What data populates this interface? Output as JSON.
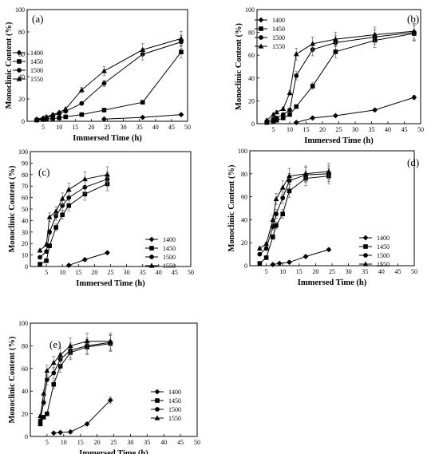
{
  "chart_data": [
    {
      "type": "line",
      "panel_label": "(a)",
      "xlabel": "Immersed Time (h)",
      "ylabel": "Monoclinic Content (%)",
      "xlim": [
        0,
        50
      ],
      "ylim": [
        0,
        100
      ],
      "xticks": [
        5,
        10,
        15,
        20,
        25,
        30,
        35,
        40,
        45,
        50
      ],
      "yticks": [
        0,
        20,
        40,
        60,
        80,
        100
      ],
      "legend_position": "center-left",
      "error_bars": true,
      "series": [
        {
          "name": "1400",
          "marker": "diamond",
          "x": [
            24,
            36,
            48
          ],
          "y": [
            2,
            3.5,
            6
          ]
        },
        {
          "name": "1450",
          "marker": "square",
          "x": [
            3,
            5,
            6,
            8,
            10,
            12,
            17,
            24,
            36,
            48
          ],
          "y": [
            1,
            1.5,
            2,
            2.5,
            3,
            4,
            6,
            10,
            17,
            62
          ]
        },
        {
          "name": "1500",
          "marker": "circle",
          "x": [
            3,
            5,
            6,
            8,
            10,
            12,
            17,
            24,
            36,
            48
          ],
          "y": [
            1.5,
            2,
            3,
            5,
            7,
            9,
            16,
            34,
            60,
            71
          ]
        },
        {
          "name": "1550",
          "marker": "triangle",
          "x": [
            3,
            5,
            6,
            8,
            10,
            12,
            17,
            24,
            36,
            48
          ],
          "y": [
            2,
            3,
            4,
            6,
            8,
            11,
            28,
            45,
            64,
            74
          ]
        }
      ]
    },
    {
      "type": "line",
      "panel_label": "(b)",
      "xlabel": "Immersed Time (h)",
      "ylabel": "Monoclinic Content (%)",
      "xlim": [
        0,
        50
      ],
      "ylim": [
        0,
        100
      ],
      "xticks": [
        5,
        10,
        15,
        20,
        25,
        30,
        35,
        40,
        45,
        50
      ],
      "yticks": [
        0,
        20,
        40,
        60,
        80,
        100
      ],
      "legend_position": "top-left",
      "error_bars": true,
      "series": [
        {
          "name": "1400",
          "marker": "diamond",
          "x": [
            12,
            17,
            24,
            36,
            48
          ],
          "y": [
            1,
            5,
            7,
            12,
            23
          ]
        },
        {
          "name": "1450",
          "marker": "square",
          "x": [
            3,
            5,
            6,
            8,
            10,
            12,
            17,
            24,
            36,
            48
          ],
          "y": [
            1,
            2,
            3,
            5,
            8,
            15,
            33,
            63,
            73,
            79
          ]
        },
        {
          "name": "1500",
          "marker": "circle",
          "x": [
            3,
            5,
            6,
            8,
            10,
            12,
            17,
            24,
            36,
            48
          ],
          "y": [
            2,
            4,
            5,
            8,
            12,
            42,
            65,
            71,
            76,
            80
          ]
        },
        {
          "name": "1550",
          "marker": "triangle",
          "x": [
            3,
            5,
            6,
            8,
            10,
            12,
            17,
            24,
            36,
            48
          ],
          "y": [
            3,
            8,
            10,
            13,
            27,
            61,
            70,
            74,
            78,
            81
          ]
        }
      ]
    },
    {
      "type": "line",
      "panel_label": "(c)",
      "xlabel": "Immersed Time (h)",
      "ylabel": "Monoclinic Content (%)",
      "xlim": [
        0,
        50
      ],
      "ylim": [
        0,
        100
      ],
      "xticks": [
        5,
        10,
        15,
        20,
        25,
        30,
        35,
        40,
        45,
        50
      ],
      "yticks": [
        0,
        10,
        20,
        30,
        40,
        50,
        60,
        70,
        80,
        90,
        100
      ],
      "legend_position": "bottom-right",
      "error_bars": true,
      "series": [
        {
          "name": "1400",
          "marker": "diamond",
          "x": [
            12,
            17,
            24
          ],
          "y": [
            1,
            6,
            12
          ]
        },
        {
          "name": "1450",
          "marker": "square",
          "x": [
            3,
            5,
            6,
            8,
            10,
            12,
            17,
            24
          ],
          "y": [
            2,
            5,
            18,
            34,
            45,
            53,
            63,
            72
          ]
        },
        {
          "name": "1500",
          "marker": "circle",
          "x": [
            3,
            5,
            6,
            8,
            10,
            12,
            17,
            24
          ],
          "y": [
            8,
            13,
            30,
            44,
            53,
            60,
            69,
            76
          ]
        },
        {
          "name": "1550",
          "marker": "triangle",
          "x": [
            3,
            5,
            6,
            8,
            10,
            12,
            17,
            24
          ],
          "y": [
            14,
            19,
            43,
            48,
            59,
            67,
            76,
            80
          ]
        }
      ]
    },
    {
      "type": "line",
      "panel_label": "(d)",
      "xlabel": "Immersed Time (h)",
      "ylabel": "Monoclinic Content (%)",
      "xlim": [
        0,
        50
      ],
      "ylim": [
        0,
        100
      ],
      "xticks": [
        5,
        10,
        15,
        20,
        25,
        30,
        35,
        40,
        45,
        50
      ],
      "yticks": [
        0,
        20,
        40,
        60,
        80,
        100
      ],
      "legend_position": "center-right",
      "error_bars": true,
      "series": [
        {
          "name": "1400",
          "marker": "diamond",
          "x": [
            7,
            9,
            12,
            17,
            24
          ],
          "y": [
            1,
            2,
            3,
            8,
            14
          ]
        },
        {
          "name": "1450",
          "marker": "square",
          "x": [
            3,
            5,
            7,
            8,
            10,
            12,
            17,
            24
          ],
          "y": [
            2,
            7,
            25,
            35,
            45,
            65,
            76,
            78
          ]
        },
        {
          "name": "1500",
          "marker": "circle",
          "x": [
            3,
            5,
            7,
            8,
            10,
            12,
            17,
            24
          ],
          "y": [
            10,
            15,
            34,
            45,
            59,
            74,
            79,
            80
          ]
        },
        {
          "name": "1550",
          "marker": "triangle",
          "x": [
            3,
            5,
            7,
            8,
            10,
            12,
            17,
            24
          ],
          "y": [
            15,
            19,
            40,
            58,
            68,
            78,
            80,
            82
          ]
        }
      ]
    },
    {
      "type": "line",
      "panel_label": "(e)",
      "xlabel": "Immersed Time (h)",
      "ylabel": "Monoclinic Content (%)",
      "xlim": [
        0,
        50
      ],
      "ylim": [
        0,
        100
      ],
      "xticks": [
        5,
        10,
        15,
        20,
        25,
        30,
        35,
        40,
        45,
        50
      ],
      "yticks": [
        0,
        20,
        40,
        60,
        80,
        100
      ],
      "legend_position": "bottom-right",
      "error_bars": true,
      "series": [
        {
          "name": "1400",
          "marker": "diamond",
          "x": [
            7,
            9,
            12,
            17,
            24
          ],
          "y": [
            3,
            3.5,
            4,
            11,
            32
          ]
        },
        {
          "name": "1450",
          "marker": "square",
          "x": [
            3,
            4,
            5,
            7,
            9,
            12,
            17,
            24
          ],
          "y": [
            11,
            17,
            20,
            46,
            62,
            74,
            79,
            82
          ]
        },
        {
          "name": "1500",
          "marker": "circle",
          "x": [
            3,
            4,
            5,
            7,
            9,
            12,
            17,
            24
          ],
          "y": [
            14,
            30,
            50,
            56,
            68,
            76,
            80,
            83
          ]
        },
        {
          "name": "1550",
          "marker": "triangle",
          "x": [
            3,
            4,
            5,
            7,
            9,
            12,
            17,
            24
          ],
          "y": [
            18,
            38,
            58,
            65,
            72,
            80,
            84,
            84
          ]
        }
      ]
    }
  ]
}
